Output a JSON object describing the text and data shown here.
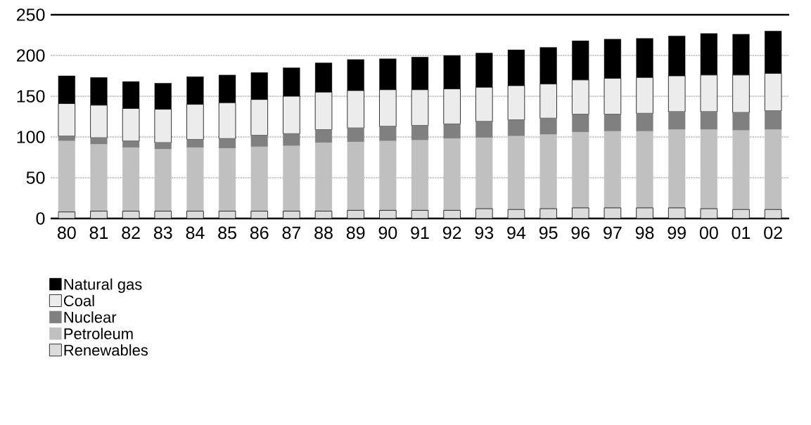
{
  "chart_data": {
    "type": "bar",
    "stacked": true,
    "categories": [
      "80",
      "81",
      "82",
      "83",
      "84",
      "85",
      "86",
      "87",
      "88",
      "89",
      "90",
      "91",
      "92",
      "93",
      "94",
      "95",
      "96",
      "97",
      "98",
      "99",
      "00",
      "01",
      "02"
    ],
    "series": [
      {
        "name": "Renewables",
        "color": "#dcdcdc",
        "values": [
          8,
          9,
          9,
          9,
          9,
          9,
          9,
          9,
          9,
          10,
          10,
          10,
          10,
          12,
          11,
          12,
          13,
          13,
          13,
          13,
          12,
          11,
          11
        ]
      },
      {
        "name": "Petroleum",
        "color": "#c0c0c0",
        "values": [
          87,
          82,
          78,
          76,
          78,
          77,
          79,
          80,
          84,
          84,
          85,
          86,
          88,
          87,
          90,
          91,
          93,
          94,
          94,
          96,
          97,
          97,
          98
        ]
      },
      {
        "name": "Nuclear",
        "color": "#808080",
        "values": [
          6,
          8,
          8,
          8,
          10,
          12,
          14,
          15,
          16,
          17,
          18,
          18,
          18,
          20,
          20,
          20,
          22,
          21,
          22,
          22,
          22,
          22,
          23
        ]
      },
      {
        "name": "Coal",
        "color": "#ececec",
        "values": [
          40,
          40,
          40,
          41,
          43,
          44,
          44,
          46,
          46,
          46,
          45,
          44,
          43,
          42,
          42,
          42,
          42,
          44,
          44,
          44,
          45,
          46,
          46
        ]
      },
      {
        "name": "Natural gas",
        "color": "#000000",
        "values": [
          34,
          34,
          33,
          32,
          34,
          34,
          33,
          35,
          36,
          38,
          38,
          40,
          41,
          42,
          44,
          45,
          48,
          48,
          48,
          49,
          51,
          50,
          52
        ]
      }
    ],
    "ylim": [
      0,
      250
    ],
    "yticks": [
      0,
      50,
      100,
      150,
      200,
      250
    ],
    "grid": "y",
    "legend": "bottom left"
  }
}
